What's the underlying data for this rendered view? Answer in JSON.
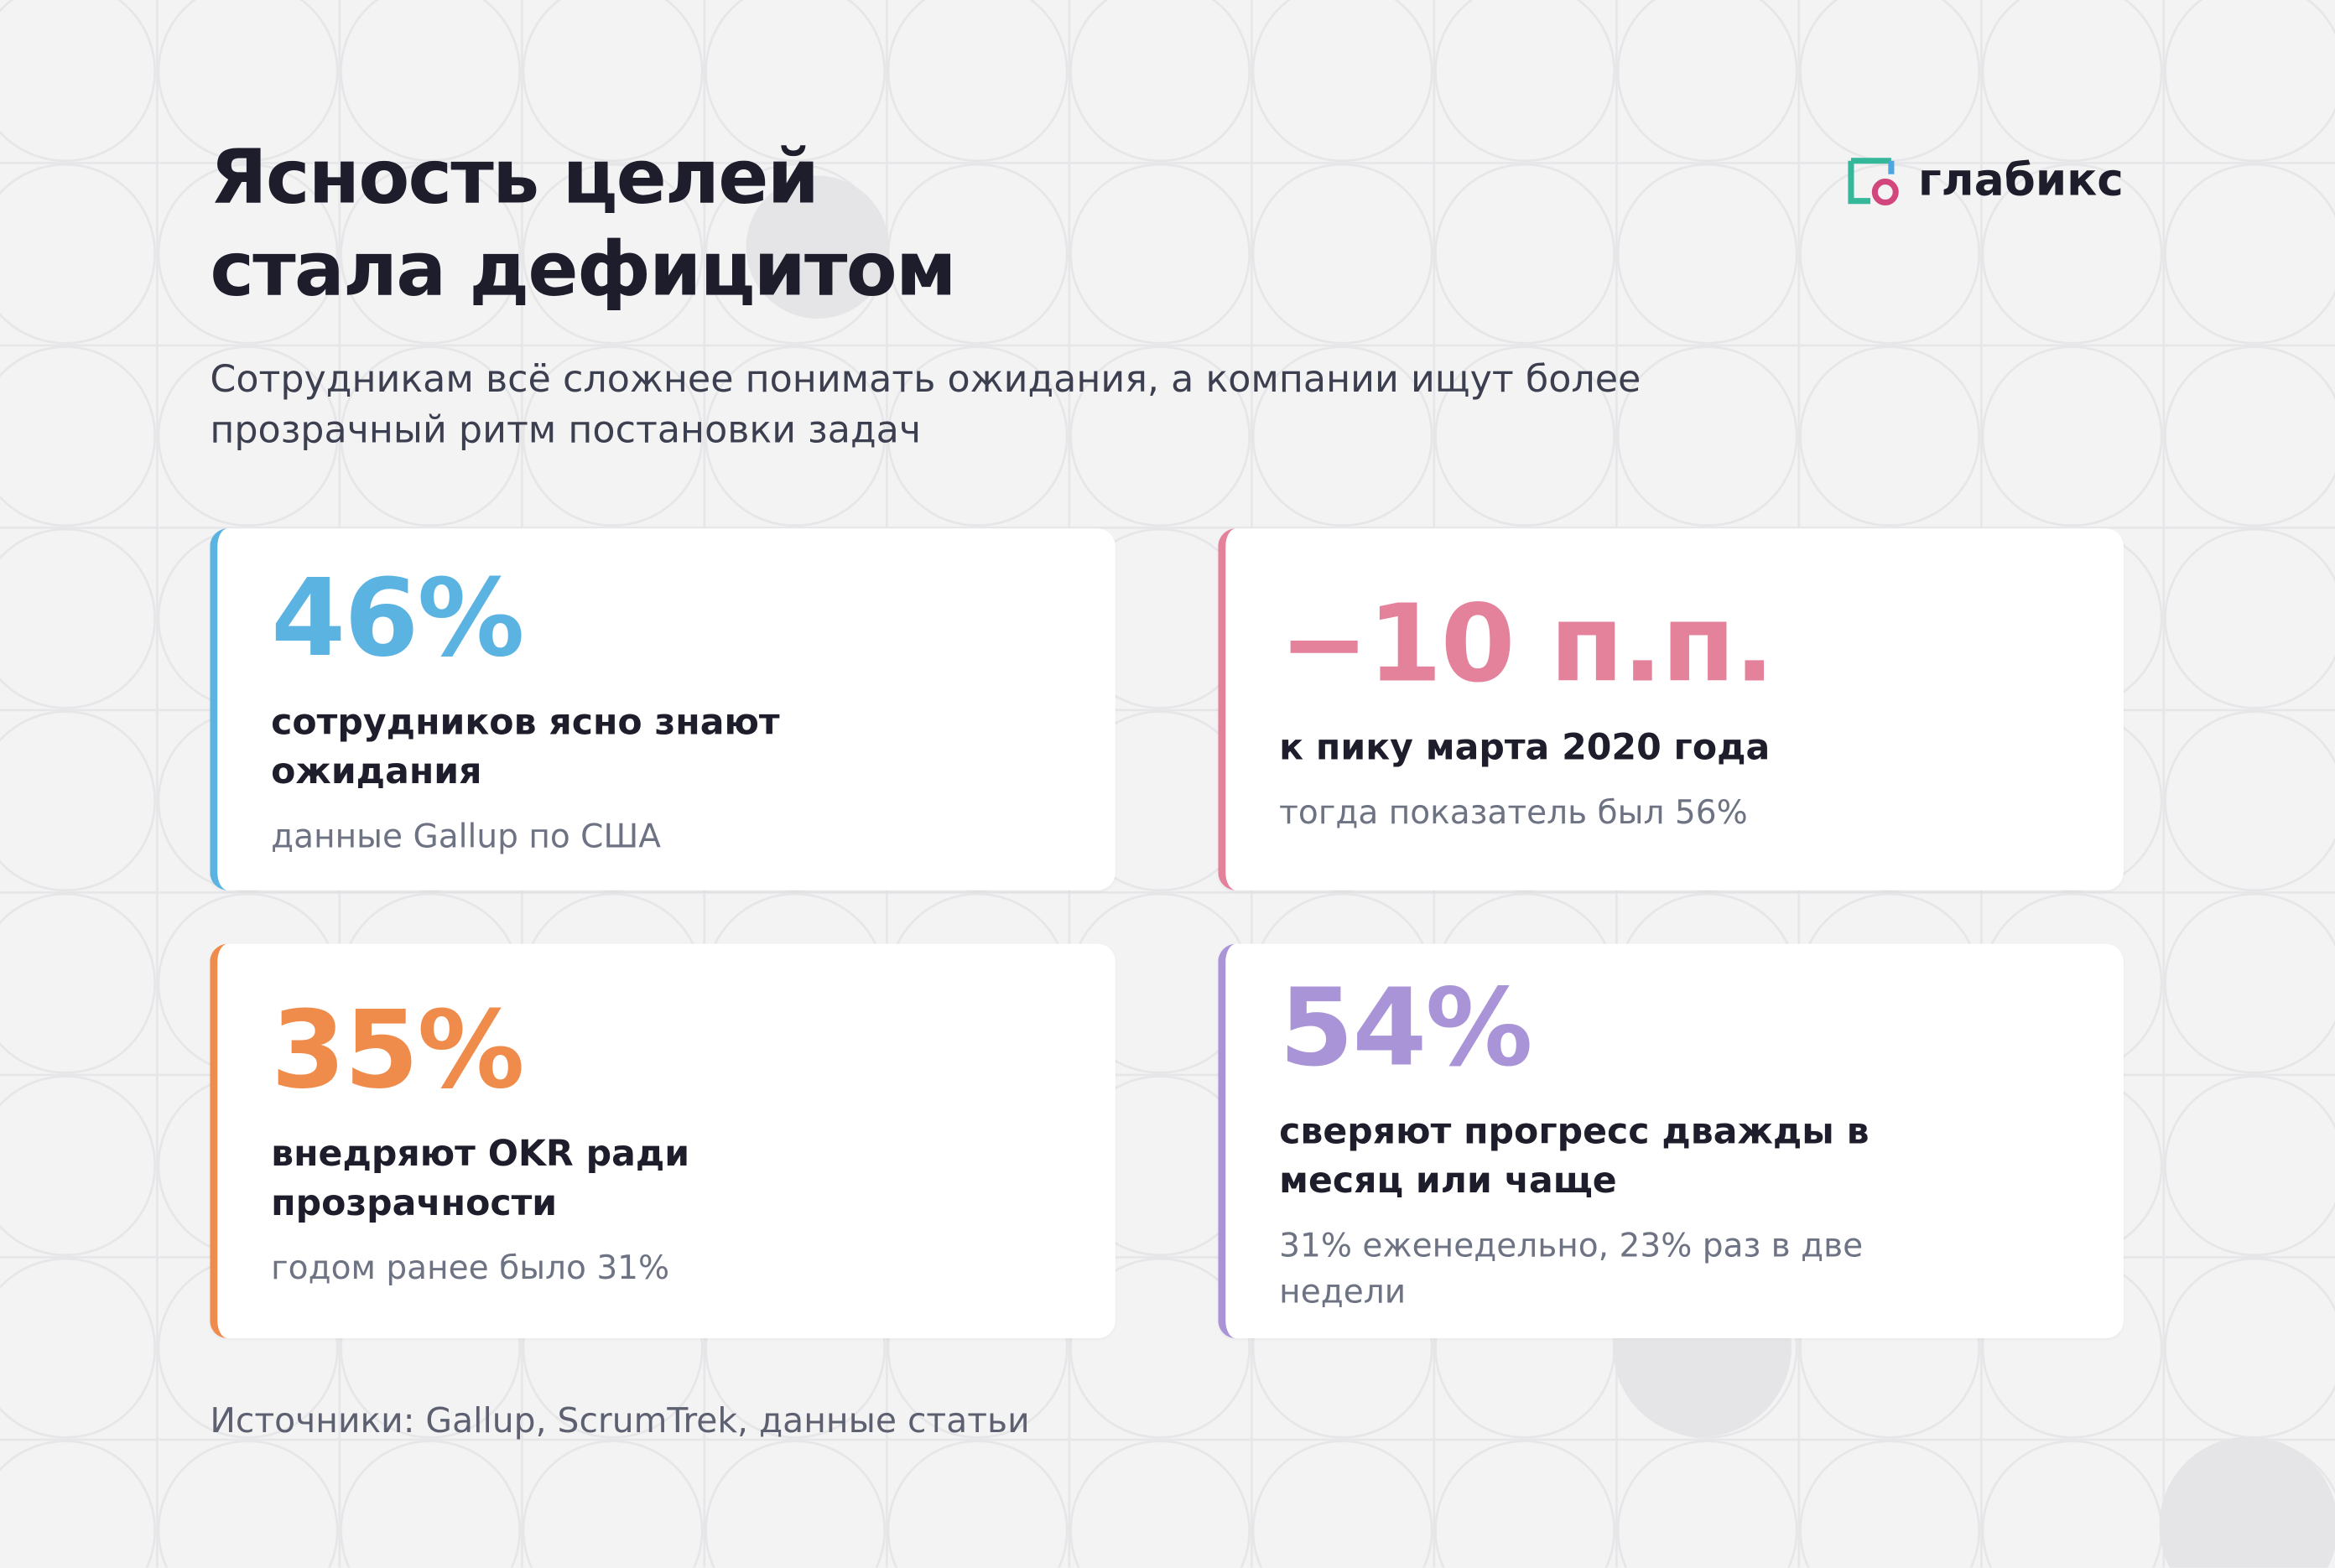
{
  "header": {
    "title_lines": [
      "Ясность целей",
      "стала дефицитом"
    ],
    "subtitle": "Сотрудникам всё сложнее понимать ожидания, а компании ищут более прозрачный ритм постановки задач",
    "brand": "глабикс"
  },
  "cards": [
    {
      "value": "46%",
      "label": "сотрудников ясно знают ожидания",
      "note": "данные Gallup по США",
      "color": "#5bb3e1"
    },
    {
      "value": "−10 п.п.",
      "label": "к пику марта 2020 года",
      "note": "тогда показатель был 56%",
      "color": "#e4829c"
    },
    {
      "value": "35%",
      "label": "внедряют OKR ради прозрачности",
      "note": "годом ранее было 31%",
      "color": "#ef8c4b"
    },
    {
      "value": "54%",
      "label": "сверяют прогресс дважды в месяц или чаще",
      "note": "31% еженедельно, 23% раз в две недели",
      "color": "#a994d8"
    }
  ],
  "footer": {
    "source": "Источники: Gallup, ScrumTrek, данные статьи"
  }
}
